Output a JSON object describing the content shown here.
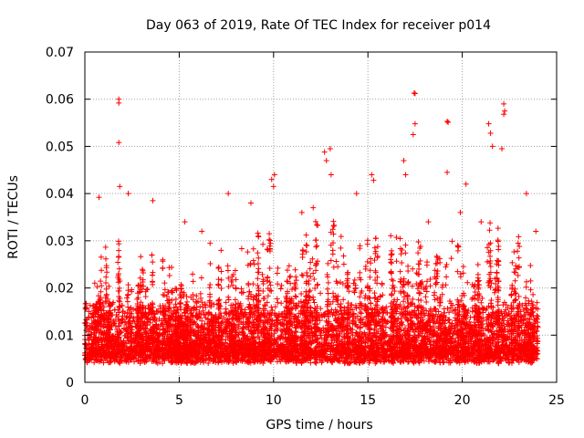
{
  "chart_data": {
    "type": "scatter",
    "title": "Day 063 of 2019, Rate Of TEC Index for receiver p014",
    "xlabel": "GPS time / hours",
    "ylabel": "ROTI / TECUs",
    "xlim": [
      0,
      25
    ],
    "ylim": [
      0,
      0.07
    ],
    "x_ticks": [
      0,
      5,
      10,
      15,
      20,
      25
    ],
    "y_ticks": [
      0,
      0.01,
      0.02,
      0.03,
      0.04,
      0.05,
      0.06,
      0.07
    ],
    "x_tick_labels": [
      "0",
      "5",
      "10",
      "15",
      "20",
      "25"
    ],
    "y_tick_labels": [
      "0",
      "0.01",
      "0.02",
      "0.03",
      "0.04",
      "0.05",
      "0.06",
      "0.07"
    ],
    "grid": true,
    "marker": "+",
    "marker_color": "#ff0000",
    "series": [
      {
        "name": "ROTI",
        "points": [
          [
            1.8,
            0.06
          ],
          [
            1.8,
            0.0592
          ],
          [
            1.8,
            0.0508
          ],
          [
            1.85,
            0.0415
          ],
          [
            17.45,
            0.0613
          ],
          [
            17.5,
            0.0612
          ],
          [
            17.5,
            0.0548
          ],
          [
            17.4,
            0.0525
          ],
          [
            19.2,
            0.0553
          ],
          [
            19.25,
            0.0551
          ],
          [
            19.2,
            0.0445
          ],
          [
            22.2,
            0.059
          ],
          [
            22.25,
            0.0575
          ],
          [
            22.2,
            0.0568
          ],
          [
            22.1,
            0.0495
          ],
          [
            21.4,
            0.0548
          ],
          [
            21.5,
            0.0528
          ],
          [
            21.6,
            0.05
          ],
          [
            13.0,
            0.0495
          ],
          [
            12.7,
            0.0488
          ],
          [
            12.8,
            0.047
          ],
          [
            13.05,
            0.044
          ],
          [
            9.9,
            0.043
          ],
          [
            10.0,
            0.0415
          ],
          [
            10.05,
            0.044
          ],
          [
            15.2,
            0.044
          ],
          [
            15.3,
            0.0428
          ],
          [
            16.9,
            0.047
          ],
          [
            17.0,
            0.044
          ],
          [
            0.75,
            0.0392
          ],
          [
            2.3,
            0.04
          ],
          [
            3.6,
            0.0385
          ],
          [
            7.6,
            0.04
          ],
          [
            23.4,
            0.04
          ],
          [
            20.2,
            0.042
          ],
          [
            8.8,
            0.038
          ],
          [
            14.4,
            0.04
          ],
          [
            11.5,
            0.036
          ],
          [
            12.1,
            0.037
          ],
          [
            5.3,
            0.034
          ],
          [
            6.2,
            0.032
          ],
          [
            18.2,
            0.034
          ],
          [
            19.9,
            0.036
          ],
          [
            21.0,
            0.034
          ],
          [
            23.9,
            0.032
          ]
        ]
      }
    ],
    "density_profile": {
      "hours": [
        0,
        0.5,
        1,
        1.5,
        2,
        2.5,
        3,
        3.5,
        4,
        4.5,
        5,
        5.5,
        6,
        6.5,
        7,
        7.5,
        8,
        8.5,
        9,
        9.5,
        10,
        10.5,
        11,
        11.5,
        12,
        12.5,
        13,
        13.5,
        14,
        14.5,
        15,
        15.5,
        16,
        16.5,
        17,
        17.5,
        18,
        18.5,
        19,
        19.5,
        20,
        20.5,
        21,
        21.5,
        22,
        22.5,
        23,
        23.5,
        24
      ],
      "upper_roti": [
        0.022,
        0.026,
        0.028,
        0.03,
        0.032,
        0.028,
        0.03,
        0.028,
        0.03,
        0.026,
        0.024,
        0.022,
        0.026,
        0.028,
        0.03,
        0.028,
        0.03,
        0.032,
        0.03,
        0.032,
        0.03,
        0.028,
        0.026,
        0.03,
        0.032,
        0.034,
        0.034,
        0.032,
        0.03,
        0.03,
        0.032,
        0.03,
        0.03,
        0.032,
        0.034,
        0.034,
        0.03,
        0.03,
        0.03,
        0.032,
        0.03,
        0.03,
        0.032,
        0.034,
        0.034,
        0.032,
        0.03,
        0.028,
        0.026
      ],
      "lower_roti": 0.004,
      "center_roti": 0.009
    }
  }
}
